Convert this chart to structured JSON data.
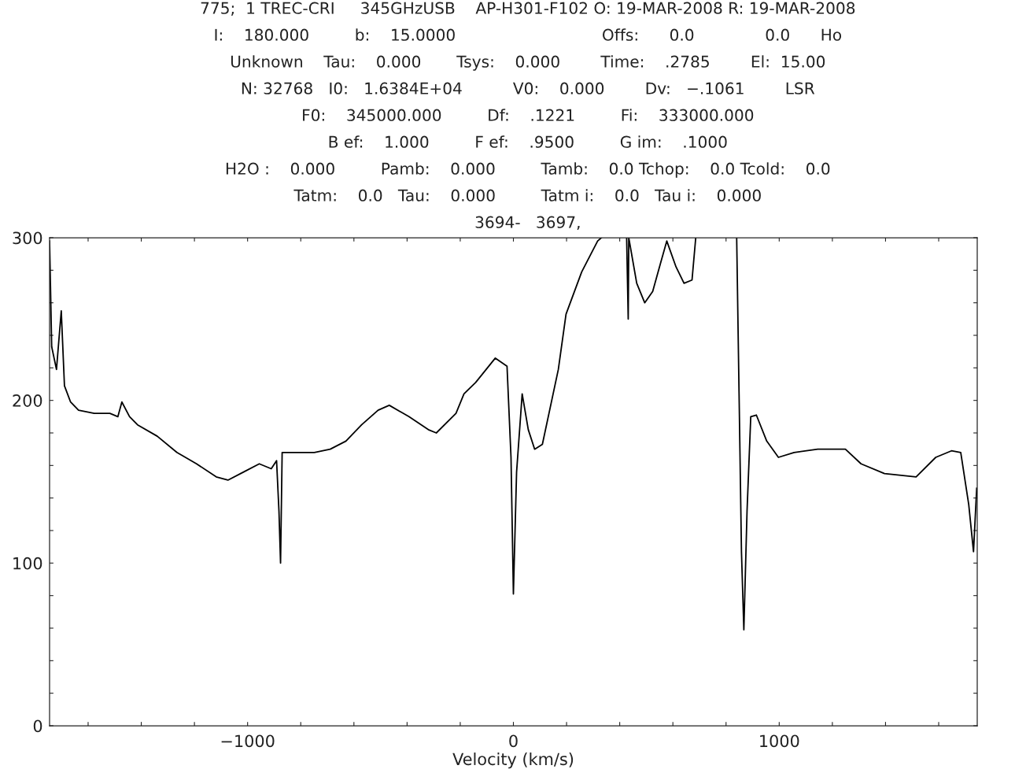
{
  "chart_data": {
    "type": "line",
    "annotations": [
      "775;  1 TREC-CRI     345GHzUSB    AP-H301-F102 O: 19-MAR-2008 R: 19-MAR-2008",
      "I:    180.000         b:    15.0000                             Offs:      0.0              0.0      Ho",
      "Unknown    Tau:    0.000       Tsys:    0.000        Time:    .2785        El:  15.00",
      "N: 32768   I0:   1.6384E+04          V0:    0.000        Dv:   −.1061        LSR",
      "F0:    345000.000         Df:    .1221         Fi:    333000.000",
      "B ef:    1.000         F ef:    .9500         G im:    .1000",
      "H2O :    0.000         Pamb:    0.000         Tamb:    0.0 Tchop:    0.0 Tcold:    0.0",
      "Tatm:    0.0   Tau:    0.000         Tatm i:    0.0   Tau i:    0.000",
      "3694-   3697,"
    ],
    "xlabel": "Velocity (km/s)",
    "xlim": [
      -1745,
      1745
    ],
    "xticks": [
      {
        "value": -1600,
        "label": null
      },
      {
        "value": -1400,
        "label": null
      },
      {
        "value": -1200,
        "label": null
      },
      -1000,
      {
        "value": -800,
        "label": null
      },
      {
        "value": -600,
        "label": null
      },
      {
        "value": -400,
        "label": null
      },
      {
        "value": -200,
        "label": null
      },
      0,
      {
        "value": 200,
        "label": null
      },
      {
        "value": 400,
        "label": null
      },
      {
        "value": 600,
        "label": null
      },
      {
        "value": 800,
        "label": null
      },
      1000,
      {
        "value": 1200,
        "label": null
      },
      {
        "value": 1400,
        "label": null
      },
      {
        "value": 1600,
        "label": null
      }
    ],
    "ylim": [
      0,
      300
    ],
    "yticks": [
      0,
      {
        "value": 20,
        "label": null
      },
      {
        "value": 40,
        "label": null
      },
      {
        "value": 60,
        "label": null
      },
      {
        "value": 80,
        "label": null
      },
      100,
      {
        "value": 120,
        "label": null
      },
      {
        "value": 140,
        "label": null
      },
      {
        "value": 160,
        "label": null
      },
      {
        "value": 180,
        "label": null
      },
      200,
      {
        "value": 220,
        "label": null
      },
      {
        "value": 240,
        "label": null
      },
      {
        "value": 260,
        "label": null
      },
      {
        "value": 280,
        "label": null
      },
      300
    ],
    "grid": false,
    "legend": false,
    "marker": "none",
    "line_style": "solid",
    "series": [
      {
        "color": "#000000",
        "x": [
          -1745,
          -1737,
          -1719,
          -1701,
          -1689,
          -1666,
          -1636,
          -1577,
          -1518,
          -1488,
          -1473,
          -1444,
          -1414,
          -1340,
          -1266,
          -1192,
          -1118,
          -1074,
          -1015,
          -956,
          -911,
          -891,
          -882,
          -876,
          -870,
          -808,
          -749,
          -689,
          -630,
          -571,
          -509,
          -467,
          -393,
          -320,
          -290,
          -216,
          -186,
          -142,
          -68,
          -24,
          -9,
          0,
          12,
          33,
          56,
          80,
          109,
          169,
          198,
          257,
          317,
          331,
          380,
          426,
          432,
          434,
          464,
          494,
          524,
          553,
          577,
          612,
          642,
          672,
          686,
          760,
          840,
          849,
          858,
          867,
          879,
          893,
          914,
          953,
          997,
          1056,
          1145,
          1249,
          1308,
          1396,
          1515,
          1589,
          1648,
          1683,
          1713,
          1731,
          1743
        ],
        "values": [
          298,
          233,
          219,
          255,
          209,
          199,
          194,
          192,
          192,
          190,
          199,
          190,
          185,
          178,
          168,
          161,
          153,
          151,
          156,
          161,
          158,
          163,
          132,
          100,
          168,
          168,
          168,
          170,
          175,
          185,
          194,
          197,
          190,
          182,
          180,
          192,
          204,
          211,
          226,
          221,
          165,
          81,
          156,
          204,
          182,
          170,
          173,
          219,
          253,
          279,
          298,
          300,
          null,
          300,
          250,
          300,
          272,
          260,
          267,
          284,
          298,
          282,
          272,
          274,
          300,
          null,
          300,
          204,
          107,
          59,
          132,
          190,
          191,
          175,
          165,
          168,
          170,
          170,
          161,
          155,
          153,
          165,
          169,
          168,
          136,
          107,
          146
        ]
      }
    ]
  }
}
